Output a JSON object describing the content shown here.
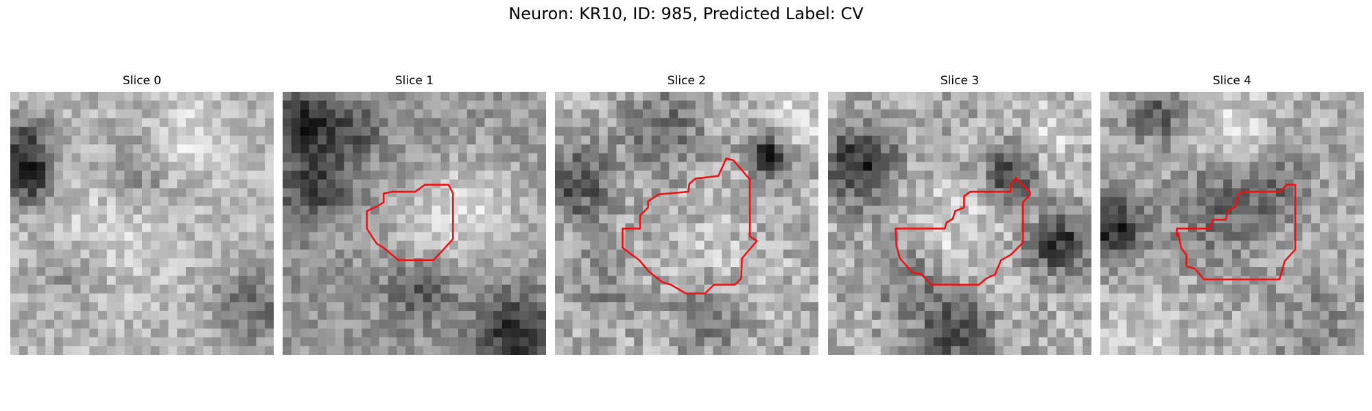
{
  "figure": {
    "title": "Neuron: KR10, ID: 985, Predicted Label: CV"
  },
  "panels": [
    {
      "title": "Slice 0",
      "has_contour": false
    },
    {
      "title": "Slice 1",
      "has_contour": true
    },
    {
      "title": "Slice 2",
      "has_contour": true
    },
    {
      "title": "Slice 3",
      "has_contour": true
    },
    {
      "title": "Slice 4",
      "has_contour": true
    }
  ],
  "colors": {
    "contour": "#ee1111",
    "colormap": "grayscale"
  }
}
